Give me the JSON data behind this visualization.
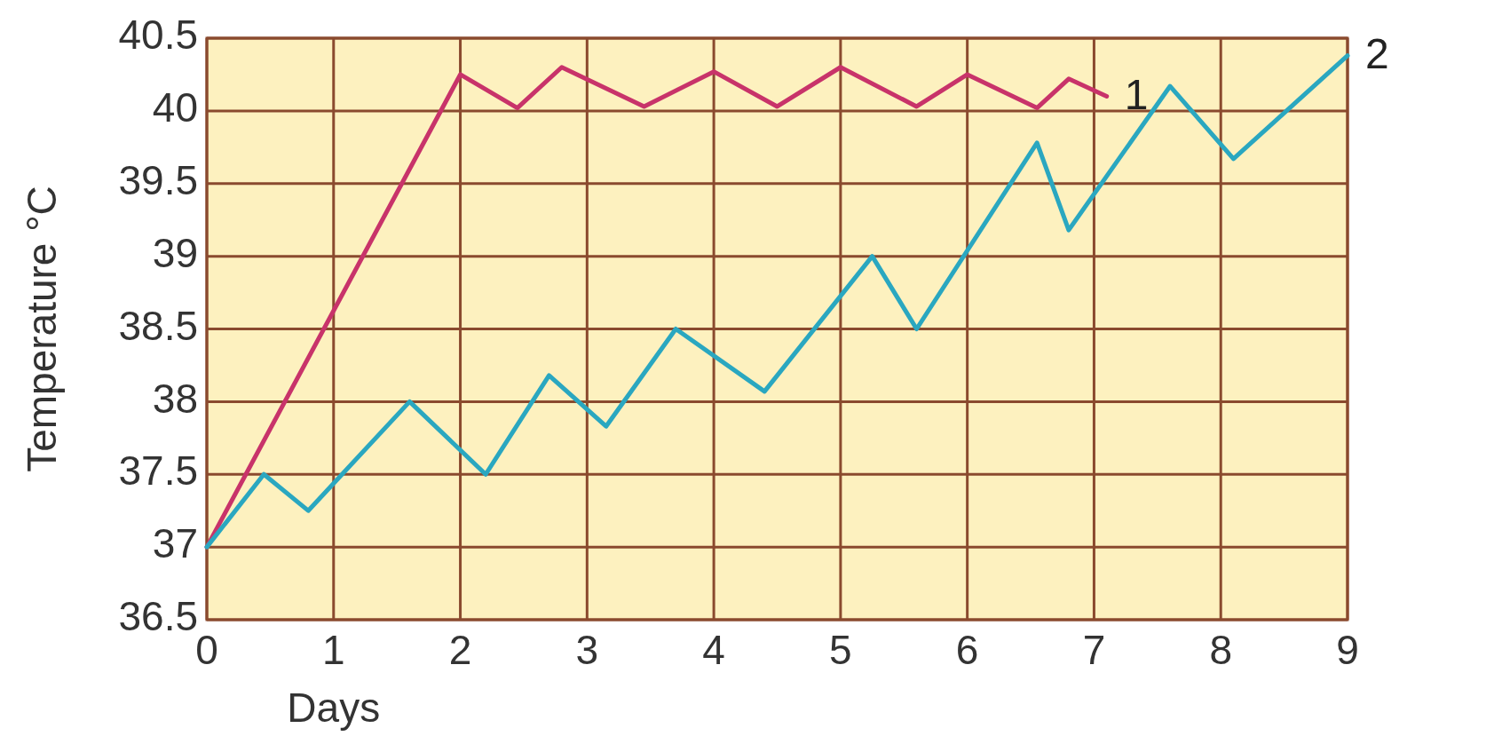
{
  "chart_data": {
    "type": "line",
    "xlabel": "Days",
    "ylabel": "Temperature °C",
    "xlim": [
      0,
      9
    ],
    "xticks": [
      0,
      1,
      2,
      3,
      4,
      5,
      6,
      7,
      8,
      9
    ],
    "ylim": [
      36.5,
      40.5
    ],
    "yticks": [
      36.5,
      37,
      37.5,
      38,
      38.5,
      39,
      39.5,
      40,
      40.5
    ],
    "grid": true,
    "series": [
      {
        "name": "1",
        "color": "#c8336a",
        "x": [
          0,
          2,
          2.45,
          2.8,
          3.45,
          4,
          4.5,
          5,
          5.6,
          6,
          6.55,
          6.8,
          7.1
        ],
        "values": [
          37,
          40.25,
          40.02,
          40.3,
          40.03,
          40.27,
          40.03,
          40.3,
          40.03,
          40.25,
          40.02,
          40.22,
          40.1
        ]
      },
      {
        "name": "2",
        "color": "#2aa7c0",
        "x": [
          0,
          0.45,
          0.8,
          1.6,
          2.2,
          2.7,
          3.15,
          3.7,
          4.4,
          5.25,
          5.6,
          6.55,
          6.8,
          7.6,
          8.1,
          9
        ],
        "values": [
          37,
          37.5,
          37.25,
          38,
          37.5,
          38.18,
          37.83,
          38.5,
          38.07,
          39,
          38.5,
          39.78,
          39.18,
          40.17,
          39.67,
          40.38
        ]
      }
    ]
  }
}
